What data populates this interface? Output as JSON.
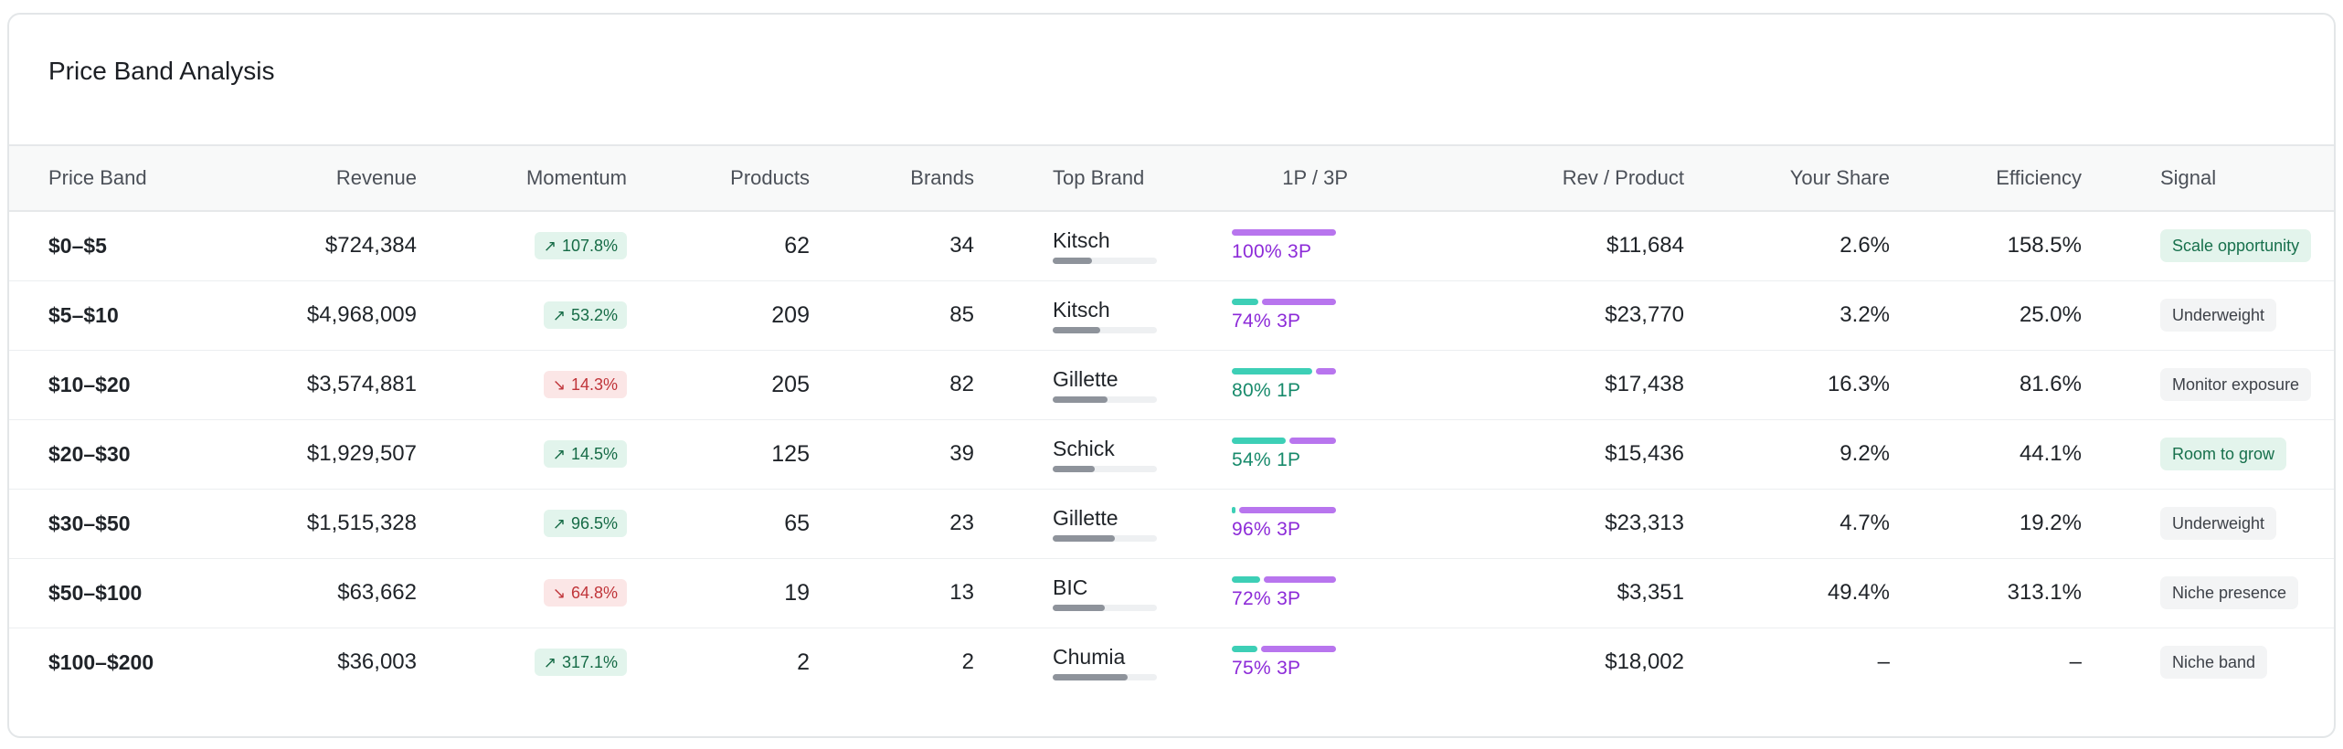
{
  "card": {
    "title": "Price Band Analysis"
  },
  "columns": {
    "price_band": "Price Band",
    "revenue": "Revenue",
    "momentum": "Momentum",
    "products": "Products",
    "brands": "Brands",
    "top_brand": "Top Brand",
    "fulfillment": "1P / 3P",
    "rev_per_product": "Rev / Product",
    "your_share": "Your Share",
    "efficiency": "Efficiency",
    "signal": "Signal"
  },
  "colors": {
    "momentum_up_bg": "#e2f4ec",
    "momentum_up_text": "#166b46",
    "momentum_down_bg": "#fbe6e6",
    "momentum_down_text": "#c0353a",
    "first_party": "#3dcfb6",
    "third_party": "#b875ee",
    "signal_green_bg": "#e3f4ec",
    "signal_gray_bg": "#f3f4f5"
  },
  "rows": [
    {
      "band": "$0–$5",
      "revenue": "$724,384",
      "momentum": "107.8%",
      "momentum_dir": "up",
      "momentum_icon": "arrow-up-right-icon",
      "products": "62",
      "brands": "34",
      "top_brand": "Kitsch",
      "top_brand_share": 0.38,
      "p1_share": 0.0,
      "p3_share": 1.0,
      "split_label": "100% 3P",
      "split_dominant": "3P",
      "rev_per_product": "$11,684",
      "your_share": "2.6%",
      "efficiency": "158.5%",
      "signal": "Scale opportunity",
      "signal_tone": "green"
    },
    {
      "band": "$5–$10",
      "revenue": "$4,968,009",
      "momentum": "53.2%",
      "momentum_dir": "up",
      "momentum_icon": "arrow-up-right-icon",
      "products": "209",
      "brands": "85",
      "top_brand": "Kitsch",
      "top_brand_share": 0.46,
      "p1_share": 0.26,
      "p3_share": 0.74,
      "split_label": "74% 3P",
      "split_dominant": "3P",
      "rev_per_product": "$23,770",
      "your_share": "3.2%",
      "efficiency": "25.0%",
      "signal": "Underweight",
      "signal_tone": "gray"
    },
    {
      "band": "$10–$20",
      "revenue": "$3,574,881",
      "momentum": "14.3%",
      "momentum_dir": "down",
      "momentum_icon": "arrow-down-right-icon",
      "products": "205",
      "brands": "82",
      "top_brand": "Gillette",
      "top_brand_share": 0.53,
      "p1_share": 0.8,
      "p3_share": 0.2,
      "split_label": "80% 1P",
      "split_dominant": "1P",
      "rev_per_product": "$17,438",
      "your_share": "16.3%",
      "efficiency": "81.6%",
      "signal": "Monitor exposure",
      "signal_tone": "gray"
    },
    {
      "band": "$20–$30",
      "revenue": "$1,929,507",
      "momentum": "14.5%",
      "momentum_dir": "up",
      "momentum_icon": "arrow-up-right-icon",
      "products": "125",
      "brands": "39",
      "top_brand": "Schick",
      "top_brand_share": 0.4,
      "p1_share": 0.54,
      "p3_share": 0.46,
      "split_label": "54% 1P",
      "split_dominant": "1P",
      "rev_per_product": "$15,436",
      "your_share": "9.2%",
      "efficiency": "44.1%",
      "signal": "Room to grow",
      "signal_tone": "green"
    },
    {
      "band": "$30–$50",
      "revenue": "$1,515,328",
      "momentum": "96.5%",
      "momentum_dir": "up",
      "momentum_icon": "arrow-up-right-icon",
      "products": "65",
      "brands": "23",
      "top_brand": "Gillette",
      "top_brand_share": 0.6,
      "p1_share": 0.04,
      "p3_share": 0.96,
      "split_label": "96% 3P",
      "split_dominant": "3P",
      "rev_per_product": "$23,313",
      "your_share": "4.7%",
      "efficiency": "19.2%",
      "signal": "Underweight",
      "signal_tone": "gray"
    },
    {
      "band": "$50–$100",
      "revenue": "$63,662",
      "momentum": "64.8%",
      "momentum_dir": "down",
      "momentum_icon": "arrow-down-right-icon",
      "products": "19",
      "brands": "13",
      "top_brand": "BIC",
      "top_brand_share": 0.5,
      "p1_share": 0.28,
      "p3_share": 0.72,
      "split_label": "72% 3P",
      "split_dominant": "3P",
      "rev_per_product": "$3,351",
      "your_share": "49.4%",
      "efficiency": "313.1%",
      "signal": "Niche presence",
      "signal_tone": "gray"
    },
    {
      "band": "$100–$200",
      "revenue": "$36,003",
      "momentum": "317.1%",
      "momentum_dir": "up",
      "momentum_icon": "arrow-up-right-icon",
      "products": "2",
      "brands": "2",
      "top_brand": "Chumia",
      "top_brand_share": 0.72,
      "p1_share": 0.25,
      "p3_share": 0.75,
      "split_label": "75% 3P",
      "split_dominant": "3P",
      "rev_per_product": "$18,002",
      "your_share": "–",
      "efficiency": "–",
      "signal": "Niche band",
      "signal_tone": "gray"
    }
  ]
}
